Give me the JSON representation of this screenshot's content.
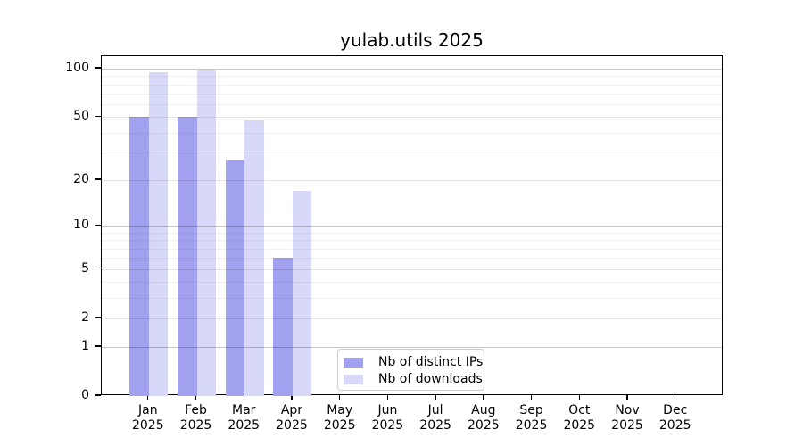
{
  "chart_data": {
    "type": "bar",
    "title": "yulab.utils 2025",
    "scale": "log1p",
    "categories": [
      "Jan",
      "Feb",
      "Mar",
      "Apr",
      "May",
      "Jun",
      "Jul",
      "Aug",
      "Sep",
      "Oct",
      "Nov",
      "Dec"
    ],
    "year": "2025",
    "series": [
      {
        "name": "Nb of distinct IPs",
        "color": "#a1a1f0",
        "values": [
          50,
          50,
          27,
          6,
          null,
          null,
          null,
          null,
          null,
          null,
          null,
          null
        ]
      },
      {
        "name": "Nb of downloads",
        "color": "#d8d8f8",
        "values": [
          95,
          97,
          48,
          17,
          null,
          null,
          null,
          null,
          null,
          null,
          null,
          null
        ]
      }
    ],
    "y_ticks": [
      100,
      50,
      20,
      10,
      5,
      2,
      1,
      0
    ],
    "ylim": [
      0,
      120
    ],
    "grid": {
      "major": [
        1,
        10,
        100
      ],
      "minor": [
        2,
        5,
        20,
        50
      ],
      "faint": [
        3,
        4,
        6,
        7,
        8,
        9,
        30,
        40,
        60,
        70,
        80,
        90
      ]
    },
    "legend_position": "bottom-center",
    "background": "#ffffff",
    "xlabel": "",
    "ylabel": ""
  }
}
